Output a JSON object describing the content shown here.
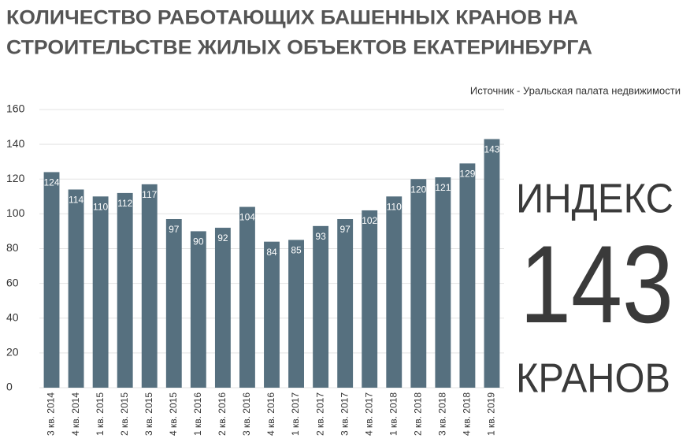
{
  "chart_data": {
    "type": "bar",
    "title": [
      "КОЛИЧЕСТВО РАБОТАЮЩИХ БАШЕННЫХ КРАНОВ НА",
      "СТРОИТЕЛЬСТВЕ ЖИЛЫХ ОБЪЕКТОВ ЕКАТЕРИНБУРГА"
    ],
    "source": "Источник - Уральская палата недвижимости",
    "categories": [
      "3 кв. 2014",
      "4 кв. 2014",
      "1 кв. 2015",
      "2 кв. 2015",
      "3 кв. 2015",
      "4 кв. 2015",
      "1 кв. 2016",
      "2 кв. 2016",
      "3 кв. 2016",
      "4 кв. 2016",
      "1 кв. 2017",
      "2 кв. 2017",
      "3 кв. 2017",
      "4 кв. 2017",
      "1 кв. 2018",
      "2 кв. 2018",
      "3 кв. 2018",
      "4 кв. 2018",
      "1 кв. 2019"
    ],
    "values": [
      124,
      114,
      110,
      112,
      117,
      97,
      90,
      92,
      104,
      84,
      85,
      93,
      97,
      102,
      110,
      120,
      121,
      129,
      143
    ],
    "color": "#56707f",
    "ylim": [
      0,
      160
    ],
    "yticks": [
      0,
      20,
      40,
      60,
      80,
      100,
      120,
      140,
      160
    ],
    "grid": true,
    "annotation": {
      "top": "ИНДЕКС",
      "value": "143",
      "bottom": "КРАНОВ"
    }
  }
}
